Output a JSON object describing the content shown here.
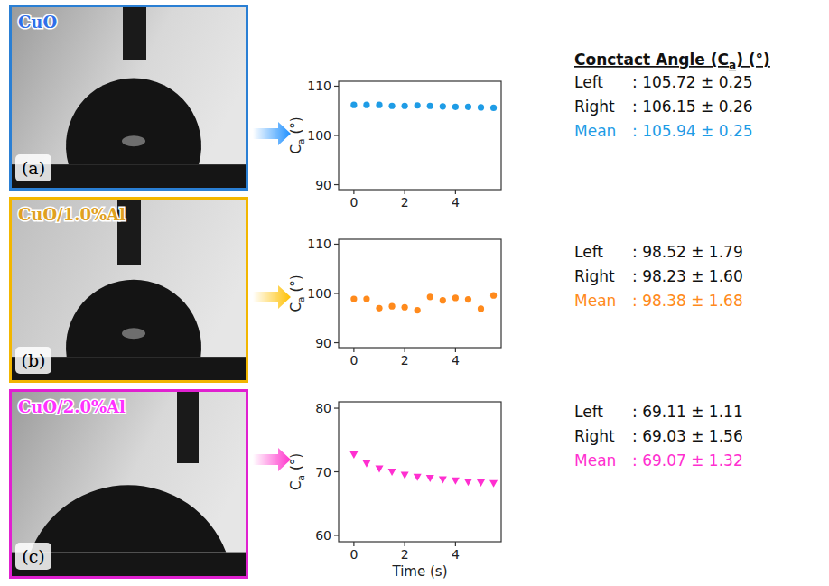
{
  "chart_data": [
    {
      "type": "scatter",
      "panel": "(a)",
      "sample": "CuO",
      "color": "#1e9ce6",
      "marker": "circle",
      "x": [
        0,
        0.5,
        1,
        1.5,
        2,
        2.5,
        3,
        3.5,
        4,
        4.5,
        5,
        5.5
      ],
      "values": [
        106.2,
        106.2,
        106.2,
        106.0,
        106.0,
        106.1,
        106.0,
        105.9,
        105.8,
        105.8,
        105.7,
        105.6
      ],
      "xlim": [
        -0.6,
        5.8
      ],
      "xticks": [
        0,
        2,
        4
      ],
      "ylim": [
        89,
        111
      ],
      "yticks": [
        90,
        100,
        110
      ],
      "ylabel": {
        "text": "C",
        "sub": "a",
        "after": " (°)"
      },
      "stats": [
        {
          "name": "Left",
          "text": ": 105.72 ± 0.25"
        },
        {
          "name": "Right",
          "text": ": 106.15 ± 0.26"
        },
        {
          "name": "Mean",
          "text": ": 105.94 ± 0.25"
        }
      ]
    },
    {
      "type": "scatter",
      "panel": "(b)",
      "sample": "CuO/1.0%Al",
      "color": "#ff8a1c",
      "marker": "circle",
      "x": [
        0,
        0.5,
        1,
        1.5,
        2,
        2.5,
        3,
        3.5,
        4,
        4.5,
        5,
        5.5
      ],
      "values": [
        98.9,
        98.9,
        97.0,
        97.4,
        97.2,
        96.6,
        99.3,
        98.6,
        99.1,
        98.8,
        96.9,
        99.6
      ],
      "xlim": [
        -0.6,
        5.8
      ],
      "xticks": [
        0,
        2,
        4
      ],
      "ylim": [
        89,
        111
      ],
      "yticks": [
        90,
        100,
        110
      ],
      "ylabel": {
        "text": "C",
        "sub": "a",
        "after": " (°)"
      },
      "stats": [
        {
          "name": "Left",
          "text": ": 98.52 ± 1.79"
        },
        {
          "name": "Right",
          "text": ": 98.23 ± 1.60"
        },
        {
          "name": "Mean",
          "text": ": 98.38 ± 1.68"
        }
      ]
    },
    {
      "type": "scatter",
      "panel": "(c)",
      "sample": "CuO/2.0%Al",
      "color": "#ff2fd0",
      "marker": "triangle_down",
      "x": [
        0,
        0.5,
        1,
        1.5,
        2,
        2.5,
        3,
        3.5,
        4,
        4.5,
        5,
        5.5
      ],
      "values": [
        72.7,
        71.3,
        70.5,
        70.0,
        69.5,
        69.2,
        69.0,
        68.8,
        68.6,
        68.4,
        68.3,
        68.2
      ],
      "xlim": [
        -0.6,
        5.8
      ],
      "xticks": [
        0,
        2,
        4
      ],
      "ylim": [
        59,
        81
      ],
      "yticks": [
        60,
        70,
        80
      ],
      "ylabel": {
        "text": "C",
        "sub": "a",
        "after": " (°)"
      },
      "xlabel": "Time (s)",
      "stats": [
        {
          "name": "Left",
          "text": ": 69.11 ± 1.11"
        },
        {
          "name": "Right",
          "text": ": 69.03 ± 1.56"
        },
        {
          "name": "Mean",
          "text": ": 69.07 ± 1.32"
        }
      ]
    }
  ],
  "header": {
    "title": "Conctact Angle (C",
    "sub": "a",
    "after": ") (°)"
  }
}
